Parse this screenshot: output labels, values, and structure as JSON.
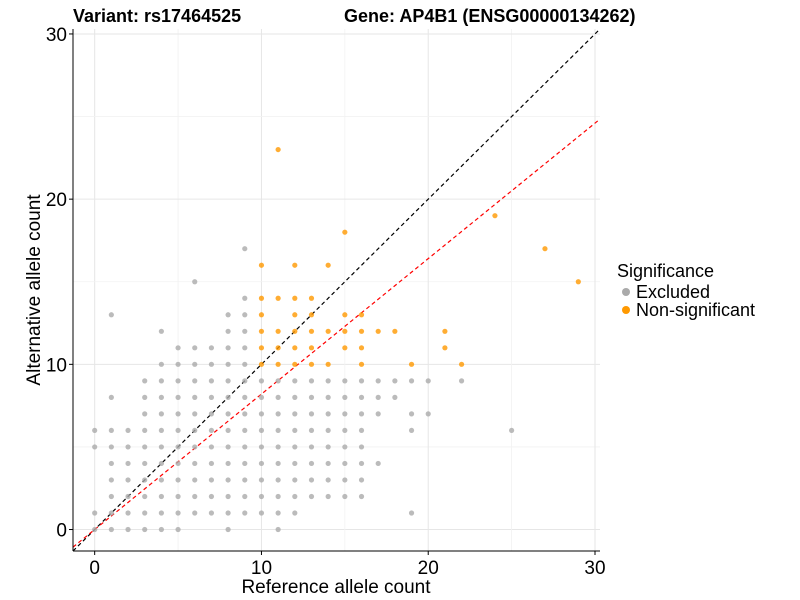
{
  "title_left": "Variant: rs17464525",
  "title_right": "Gene: AP4B1 (ENSG00000134262)",
  "chart_data": {
    "type": "scatter",
    "xlabel": "Reference allele count",
    "ylabel": "Alternative allele count",
    "xlim": [
      -1.3,
      30.3
    ],
    "ylim": [
      -1.3,
      30.3
    ],
    "x_ticks": [
      0,
      10,
      20,
      30
    ],
    "y_ticks": [
      0,
      10,
      20,
      30
    ],
    "grid": true,
    "reference_lines": [
      {
        "name": "y = x",
        "slope": 1.0,
        "intercept": 0,
        "color": "#000000",
        "style": "dashed"
      },
      {
        "name": "fit",
        "slope": 0.82,
        "intercept": 0,
        "color": "#ff0000",
        "style": "dashed"
      }
    ],
    "legend": {
      "title": "Significance",
      "position": "right",
      "entries": [
        {
          "label": "Excluded",
          "color": "#aaaaaa"
        },
        {
          "label": "Non-significant",
          "color": "#ff9900"
        }
      ]
    },
    "series": [
      {
        "name": "Excluded",
        "color": "#aaaaaa",
        "points": [
          [
            0,
            0
          ],
          [
            0,
            1
          ],
          [
            0,
            5
          ],
          [
            0,
            6
          ],
          [
            1,
            0
          ],
          [
            1,
            1
          ],
          [
            1,
            2
          ],
          [
            1,
            3
          ],
          [
            1,
            4
          ],
          [
            1,
            5
          ],
          [
            1,
            6
          ],
          [
            1,
            8
          ],
          [
            1,
            13
          ],
          [
            2,
            0
          ],
          [
            2,
            1
          ],
          [
            2,
            2
          ],
          [
            2,
            3
          ],
          [
            2,
            4
          ],
          [
            2,
            5
          ],
          [
            2,
            6
          ],
          [
            3,
            0
          ],
          [
            3,
            1
          ],
          [
            3,
            2
          ],
          [
            3,
            3
          ],
          [
            3,
            4
          ],
          [
            3,
            5
          ],
          [
            3,
            6
          ],
          [
            3,
            7
          ],
          [
            3,
            8
          ],
          [
            3,
            9
          ],
          [
            4,
            0
          ],
          [
            4,
            1
          ],
          [
            4,
            2
          ],
          [
            4,
            3
          ],
          [
            4,
            4
          ],
          [
            4,
            5
          ],
          [
            4,
            6
          ],
          [
            4,
            7
          ],
          [
            4,
            8
          ],
          [
            4,
            9
          ],
          [
            4,
            10
          ],
          [
            4,
            12
          ],
          [
            5,
            0
          ],
          [
            5,
            1
          ],
          [
            5,
            2
          ],
          [
            5,
            3
          ],
          [
            5,
            4
          ],
          [
            5,
            5
          ],
          [
            5,
            6
          ],
          [
            5,
            7
          ],
          [
            5,
            8
          ],
          [
            5,
            9
          ],
          [
            5,
            10
          ],
          [
            5,
            11
          ],
          [
            6,
            1
          ],
          [
            6,
            2
          ],
          [
            6,
            3
          ],
          [
            6,
            4
          ],
          [
            6,
            5
          ],
          [
            6,
            6
          ],
          [
            6,
            7
          ],
          [
            6,
            8
          ],
          [
            6,
            9
          ],
          [
            6,
            10
          ],
          [
            6,
            11
          ],
          [
            6,
            15
          ],
          [
            7,
            1
          ],
          [
            7,
            2
          ],
          [
            7,
            3
          ],
          [
            7,
            4
          ],
          [
            7,
            5
          ],
          [
            7,
            6
          ],
          [
            7,
            7
          ],
          [
            7,
            8
          ],
          [
            7,
            9
          ],
          [
            7,
            10
          ],
          [
            7,
            11
          ],
          [
            8,
            0
          ],
          [
            8,
            1
          ],
          [
            8,
            2
          ],
          [
            8,
            3
          ],
          [
            8,
            4
          ],
          [
            8,
            5
          ],
          [
            8,
            6
          ],
          [
            8,
            7
          ],
          [
            8,
            8
          ],
          [
            8,
            9
          ],
          [
            8,
            10
          ],
          [
            8,
            11
          ],
          [
            8,
            12
          ],
          [
            8,
            13
          ],
          [
            9,
            1
          ],
          [
            9,
            2
          ],
          [
            9,
            3
          ],
          [
            9,
            4
          ],
          [
            9,
            5
          ],
          [
            9,
            6
          ],
          [
            9,
            7
          ],
          [
            9,
            8
          ],
          [
            9,
            9
          ],
          [
            9,
            10
          ],
          [
            9,
            11
          ],
          [
            9,
            12
          ],
          [
            9,
            13
          ],
          [
            9,
            14
          ],
          [
            9,
            17
          ],
          [
            10,
            1
          ],
          [
            10,
            2
          ],
          [
            10,
            3
          ],
          [
            10,
            4
          ],
          [
            10,
            5
          ],
          [
            10,
            6
          ],
          [
            10,
            7
          ],
          [
            10,
            8
          ],
          [
            10,
            9
          ],
          [
            11,
            0
          ],
          [
            11,
            1
          ],
          [
            11,
            2
          ],
          [
            11,
            3
          ],
          [
            11,
            4
          ],
          [
            11,
            5
          ],
          [
            11,
            6
          ],
          [
            11,
            7
          ],
          [
            11,
            8
          ],
          [
            11,
            9
          ],
          [
            12,
            1
          ],
          [
            12,
            2
          ],
          [
            12,
            3
          ],
          [
            12,
            4
          ],
          [
            12,
            5
          ],
          [
            12,
            6
          ],
          [
            12,
            7
          ],
          [
            12,
            8
          ],
          [
            12,
            9
          ],
          [
            13,
            2
          ],
          [
            13,
            3
          ],
          [
            13,
            4
          ],
          [
            13,
            5
          ],
          [
            13,
            6
          ],
          [
            13,
            7
          ],
          [
            13,
            8
          ],
          [
            13,
            9
          ],
          [
            14,
            2
          ],
          [
            14,
            3
          ],
          [
            14,
            4
          ],
          [
            14,
            5
          ],
          [
            14,
            6
          ],
          [
            14,
            7
          ],
          [
            14,
            8
          ],
          [
            14,
            9
          ],
          [
            15,
            2
          ],
          [
            15,
            3
          ],
          [
            15,
            4
          ],
          [
            15,
            5
          ],
          [
            15,
            6
          ],
          [
            15,
            7
          ],
          [
            15,
            8
          ],
          [
            15,
            9
          ],
          [
            16,
            2
          ],
          [
            16,
            3
          ],
          [
            16,
            4
          ],
          [
            16,
            5
          ],
          [
            16,
            6
          ],
          [
            16,
            7
          ],
          [
            16,
            8
          ],
          [
            16,
            9
          ],
          [
            17,
            4
          ],
          [
            17,
            7
          ],
          [
            17,
            8
          ],
          [
            17,
            9
          ],
          [
            18,
            8
          ],
          [
            18,
            9
          ],
          [
            19,
            1
          ],
          [
            19,
            6
          ],
          [
            19,
            7
          ],
          [
            19,
            9
          ],
          [
            20,
            7
          ],
          [
            20,
            9
          ],
          [
            22,
            9
          ],
          [
            25,
            6
          ]
        ]
      },
      {
        "name": "Non-significant",
        "color": "#ff9900",
        "points": [
          [
            10,
            10
          ],
          [
            10,
            11
          ],
          [
            10,
            12
          ],
          [
            10,
            13
          ],
          [
            10,
            14
          ],
          [
            10,
            16
          ],
          [
            11,
            10
          ],
          [
            11,
            11
          ],
          [
            11,
            12
          ],
          [
            11,
            14
          ],
          [
            11,
            23
          ],
          [
            12,
            10
          ],
          [
            12,
            11
          ],
          [
            12,
            12
          ],
          [
            12,
            13
          ],
          [
            12,
            14
          ],
          [
            12,
            16
          ],
          [
            13,
            10
          ],
          [
            13,
            11
          ],
          [
            13,
            12
          ],
          [
            13,
            13
          ],
          [
            13,
            14
          ],
          [
            14,
            10
          ],
          [
            14,
            12
          ],
          [
            14,
            16
          ],
          [
            15,
            11
          ],
          [
            15,
            12
          ],
          [
            15,
            13
          ],
          [
            15,
            18
          ],
          [
            16,
            10
          ],
          [
            16,
            11
          ],
          [
            16,
            12
          ],
          [
            16,
            13
          ],
          [
            17,
            12
          ],
          [
            18,
            12
          ],
          [
            19,
            10
          ],
          [
            21,
            11
          ],
          [
            21,
            12
          ],
          [
            22,
            10
          ],
          [
            24,
            19
          ],
          [
            27,
            17
          ],
          [
            29,
            15
          ]
        ]
      }
    ]
  }
}
